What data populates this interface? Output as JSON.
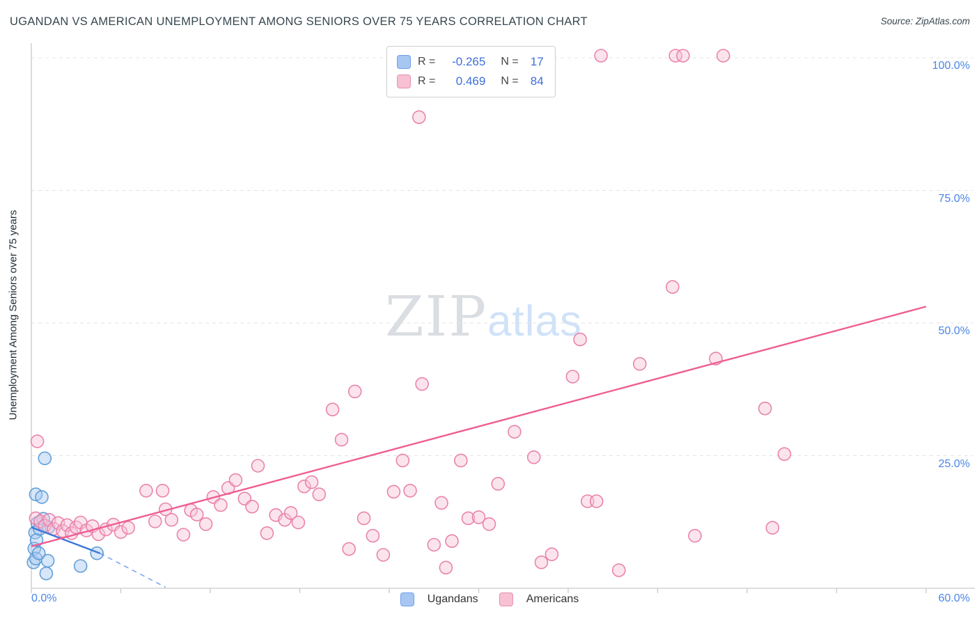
{
  "header": {
    "title": "UGANDAN VS AMERICAN UNEMPLOYMENT AMONG SENIORS OVER 75 YEARS CORRELATION CHART",
    "source": "Source: ZipAtlas.com"
  },
  "watermark": {
    "zip": "ZIP",
    "atlas": "atlas"
  },
  "axes": {
    "y_label": "Unemployment Among Seniors over 75 years",
    "x_min_label": "0.0%",
    "x_max_label": "60.0%",
    "y_tick_labels": [
      "100.0%",
      "75.0%",
      "50.0%",
      "25.0%"
    ]
  },
  "legend_box": {
    "rows": [
      {
        "series": "Ugandans",
        "r_label": "R =",
        "r_value": "-0.265",
        "n_label": "N =",
        "n_value": "17"
      },
      {
        "series": "Americans",
        "r_label": "R =",
        "r_value": "0.469",
        "n_label": "N =",
        "n_value": "84"
      }
    ]
  },
  "bottom_legend": {
    "ugandans": "Ugandans",
    "americans": "Americans"
  },
  "colors": {
    "accent_blue": "#4a86e8",
    "ugandan_fill": "#a7c7f2",
    "ugandan_stroke": "#5b9bd5",
    "ugandan_trend": "#3b78d8",
    "american_fill": "#f9c3d6",
    "american_stroke": "#e87da8",
    "american_trend": "#ef5d92",
    "grid": "#e3e3e3"
  },
  "chart_data": {
    "type": "scatter",
    "title": "UGANDAN VS AMERICAN UNEMPLOYMENT AMONG SENIORS OVER 75 YEARS CORRELATION CHART",
    "xlabel": "",
    "ylabel": "Unemployment Among Seniors over 75 years",
    "xlim": [
      0,
      60
    ],
    "ylim": [
      0,
      105
    ],
    "x_ticks": [
      0,
      6,
      12,
      18,
      24,
      30,
      36,
      42,
      48,
      54,
      60
    ],
    "y_ticks": [
      25,
      50,
      75,
      100
    ],
    "grid": "horizontal-dashed",
    "legend_position": "top-center",
    "series": [
      {
        "name": "Ugandans",
        "R": -0.265,
        "N": 17,
        "fill": "#a7c7f2",
        "stroke": "#5b9bd5",
        "points": [
          [
            0.15,
            4.9
          ],
          [
            0.2,
            7.5
          ],
          [
            0.25,
            10.5
          ],
          [
            0.3,
            5.6
          ],
          [
            0.35,
            9.1
          ],
          [
            0.4,
            12.3
          ],
          [
            0.3,
            17.7
          ],
          [
            0.7,
            17.2
          ],
          [
            0.9,
            24.5
          ],
          [
            0.55,
            11.2
          ],
          [
            0.8,
            13.1
          ],
          [
            1.0,
            2.8
          ],
          [
            1.1,
            5.2
          ],
          [
            1.15,
            11.5
          ],
          [
            0.5,
            6.6
          ],
          [
            3.3,
            4.2
          ],
          [
            4.4,
            6.6
          ]
        ]
      },
      {
        "name": "Americans",
        "R": 0.469,
        "N": 84,
        "fill": "#f9c3d6",
        "stroke": "#e87da8",
        "points": [
          [
            0.4,
            27.7
          ],
          [
            0.3,
            13.2
          ],
          [
            0.6,
            12.6
          ],
          [
            0.9,
            11.8
          ],
          [
            1.2,
            12.9
          ],
          [
            1.5,
            11.2
          ],
          [
            1.8,
            12.3
          ],
          [
            2.1,
            10.8
          ],
          [
            2.4,
            11.9
          ],
          [
            2.7,
            10.4
          ],
          [
            3.0,
            11.5
          ],
          [
            3.3,
            12.4
          ],
          [
            3.7,
            10.9
          ],
          [
            4.1,
            11.7
          ],
          [
            4.5,
            10.2
          ],
          [
            5.0,
            11.1
          ],
          [
            5.5,
            12.0
          ],
          [
            6.0,
            10.6
          ],
          [
            6.5,
            11.4
          ],
          [
            7.7,
            18.4
          ],
          [
            8.8,
            18.4
          ],
          [
            8.3,
            12.6
          ],
          [
            9.0,
            14.9
          ],
          [
            9.4,
            12.9
          ],
          [
            10.2,
            10.1
          ],
          [
            10.7,
            14.7
          ],
          [
            11.1,
            13.9
          ],
          [
            11.7,
            12.1
          ],
          [
            12.2,
            17.2
          ],
          [
            12.7,
            15.7
          ],
          [
            13.2,
            18.9
          ],
          [
            13.7,
            20.4
          ],
          [
            14.3,
            16.9
          ],
          [
            14.8,
            15.4
          ],
          [
            15.2,
            23.1
          ],
          [
            15.8,
            10.4
          ],
          [
            16.4,
            13.8
          ],
          [
            17.0,
            12.9
          ],
          [
            17.4,
            14.2
          ],
          [
            17.9,
            12.4
          ],
          [
            18.3,
            19.2
          ],
          [
            18.8,
            20.0
          ],
          [
            19.3,
            17.7
          ],
          [
            20.2,
            33.7
          ],
          [
            20.8,
            28.0
          ],
          [
            21.3,
            7.4
          ],
          [
            21.7,
            37.1
          ],
          [
            22.3,
            13.2
          ],
          [
            22.9,
            9.9
          ],
          [
            23.6,
            6.3
          ],
          [
            24.3,
            18.2
          ],
          [
            24.9,
            24.1
          ],
          [
            25.4,
            18.4
          ],
          [
            26.0,
            88.8
          ],
          [
            26.2,
            38.5
          ],
          [
            27.0,
            8.2
          ],
          [
            27.5,
            16.1
          ],
          [
            27.8,
            3.9
          ],
          [
            28.2,
            8.9
          ],
          [
            28.8,
            24.1
          ],
          [
            29.3,
            13.2
          ],
          [
            30.0,
            13.4
          ],
          [
            30.7,
            12.1
          ],
          [
            31.3,
            19.7
          ],
          [
            32.4,
            29.5
          ],
          [
            33.7,
            24.7
          ],
          [
            34.2,
            4.9
          ],
          [
            34.9,
            6.4
          ],
          [
            36.3,
            39.9
          ],
          [
            36.8,
            46.9
          ],
          [
            37.3,
            16.4
          ],
          [
            37.9,
            16.4
          ],
          [
            38.2,
            100.4
          ],
          [
            39.4,
            3.4
          ],
          [
            40.8,
            42.3
          ],
          [
            43.0,
            56.8
          ],
          [
            43.2,
            100.4
          ],
          [
            43.7,
            100.4
          ],
          [
            44.5,
            9.9
          ],
          [
            45.9,
            43.3
          ],
          [
            46.4,
            100.4
          ],
          [
            49.2,
            33.9
          ],
          [
            49.7,
            11.4
          ],
          [
            50.5,
            25.3
          ]
        ]
      }
    ],
    "trendlines": [
      {
        "series": "Ugandans",
        "color": "#3b78d8",
        "solid": [
          [
            0,
            11.5
          ],
          [
            4.6,
            6.6
          ]
        ],
        "dashed": [
          [
            4.6,
            6.6
          ],
          [
            9.0,
            0.2
          ]
        ]
      },
      {
        "series": "Americans",
        "color": "#ef5d92",
        "solid": [
          [
            0,
            7.9
          ],
          [
            60,
            53.1
          ]
        ]
      }
    ]
  }
}
